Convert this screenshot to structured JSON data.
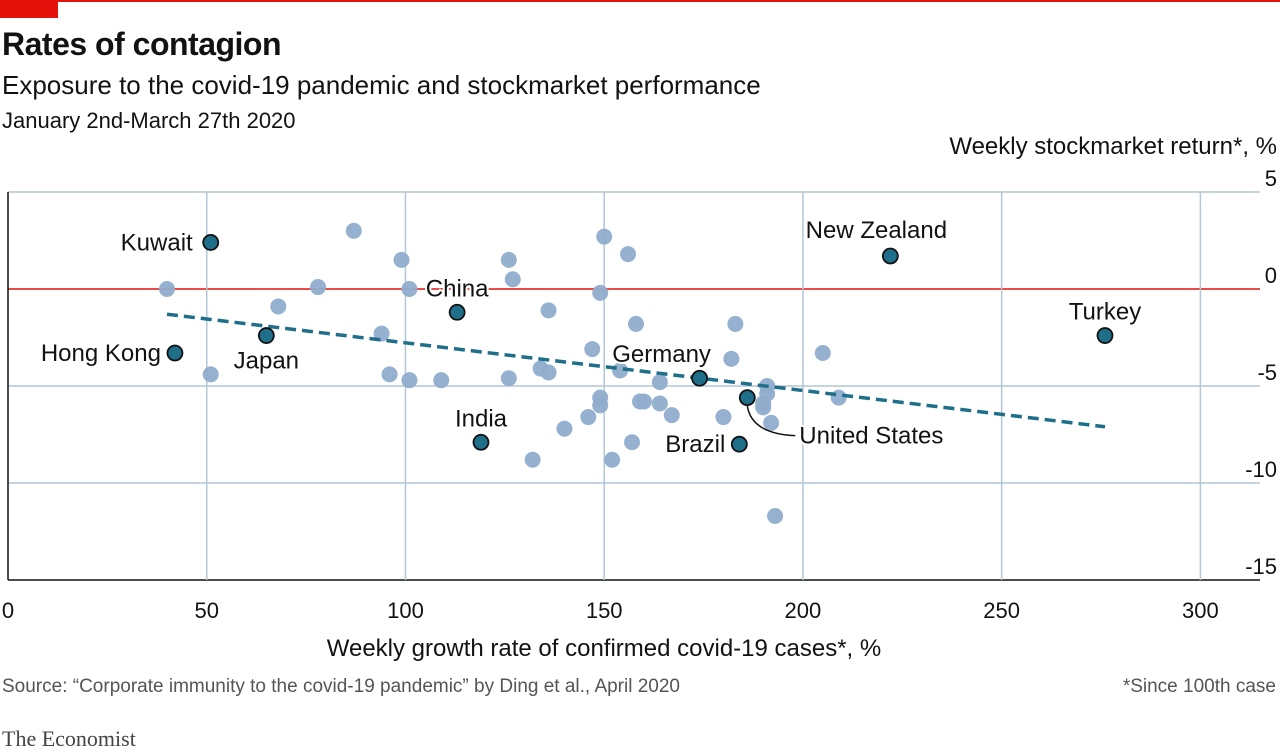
{
  "header": {
    "title": "Rates of contagion",
    "subtitle": "Exposure to the covid-19 pandemic and stockmarket performance",
    "daterange": "January 2nd-March 27th 2020"
  },
  "footer": {
    "source": "Source: “Corporate immunity to the covid-19 pandemic” by Ding et al., April 2020",
    "footnote": "*Since 100th case",
    "brand": "The Economist"
  },
  "colors": {
    "accent": "#e3120b",
    "highlight": "#1f6f8b",
    "other": "#8fadcc",
    "trend": "#1f6f8b",
    "grid": "#b3c6d6"
  },
  "chart_data": {
    "type": "scatter",
    "xlabel": "Weekly growth rate of confirmed covid-19 cases*, %",
    "ylabel": "Weekly stockmarket return*, %",
    "xlim": [
      0,
      315
    ],
    "ylim": [
      -15,
      5
    ],
    "xticks": [
      0,
      50,
      100,
      150,
      200,
      250,
      300
    ],
    "yticks": [
      5,
      0,
      -5,
      -10,
      -15
    ],
    "grid": true,
    "trendline": {
      "x": [
        40,
        276
      ],
      "y": [
        -1.3,
        -7.1
      ]
    },
    "highlighted": [
      {
        "name": "Kuwait",
        "x": 51,
        "y": 2.4
      },
      {
        "name": "Hong Kong",
        "x": 42,
        "y": -3.3
      },
      {
        "name": "Japan",
        "x": 65,
        "y": -2.4
      },
      {
        "name": "China",
        "x": 113,
        "y": -1.2
      },
      {
        "name": "India",
        "x": 119,
        "y": -7.9
      },
      {
        "name": "Germany",
        "x": 174,
        "y": -4.6
      },
      {
        "name": "Brazil",
        "x": 184,
        "y": -8.0
      },
      {
        "name": "United States",
        "x": 186,
        "y": -5.6
      },
      {
        "name": "New Zealand",
        "x": 222,
        "y": 1.7
      },
      {
        "name": "Turkey",
        "x": 276,
        "y": -2.4
      }
    ],
    "others": [
      {
        "x": 40,
        "y": 0.0
      },
      {
        "x": 51,
        "y": -4.4
      },
      {
        "x": 68,
        "y": -0.9
      },
      {
        "x": 78,
        "y": 0.1
      },
      {
        "x": 87,
        "y": 3.0
      },
      {
        "x": 94,
        "y": -2.3
      },
      {
        "x": 96,
        "y": -4.4
      },
      {
        "x": 99,
        "y": 1.5
      },
      {
        "x": 101,
        "y": 0.0
      },
      {
        "x": 101,
        "y": -4.7
      },
      {
        "x": 109,
        "y": -4.7
      },
      {
        "x": 126,
        "y": 1.5
      },
      {
        "x": 126,
        "y": -4.6
      },
      {
        "x": 127,
        "y": 0.5
      },
      {
        "x": 132,
        "y": -8.8
      },
      {
        "x": 134,
        "y": -4.1
      },
      {
        "x": 136,
        "y": -1.1
      },
      {
        "x": 136,
        "y": -4.3
      },
      {
        "x": 140,
        "y": -7.2
      },
      {
        "x": 146,
        "y": -6.6
      },
      {
        "x": 147,
        "y": -3.1
      },
      {
        "x": 149,
        "y": -0.2
      },
      {
        "x": 149,
        "y": -5.6
      },
      {
        "x": 149,
        "y": -6.0
      },
      {
        "x": 150,
        "y": 2.7
      },
      {
        "x": 152,
        "y": -8.8
      },
      {
        "x": 154,
        "y": -4.2
      },
      {
        "x": 156,
        "y": 1.8
      },
      {
        "x": 157,
        "y": -7.9
      },
      {
        "x": 158,
        "y": -1.8
      },
      {
        "x": 159,
        "y": -5.8
      },
      {
        "x": 160,
        "y": -5.8
      },
      {
        "x": 164,
        "y": -4.8
      },
      {
        "x": 164,
        "y": -5.9
      },
      {
        "x": 167,
        "y": -6.5
      },
      {
        "x": 180,
        "y": -6.6
      },
      {
        "x": 182,
        "y": -3.6
      },
      {
        "x": 183,
        "y": -1.8
      },
      {
        "x": 190,
        "y": -5.9
      },
      {
        "x": 190,
        "y": -6.1
      },
      {
        "x": 191,
        "y": -5.0
      },
      {
        "x": 191,
        "y": -5.4
      },
      {
        "x": 192,
        "y": -6.9
      },
      {
        "x": 193,
        "y": -11.7
      },
      {
        "x": 205,
        "y": -3.3
      },
      {
        "x": 209,
        "y": -5.6
      }
    ]
  }
}
